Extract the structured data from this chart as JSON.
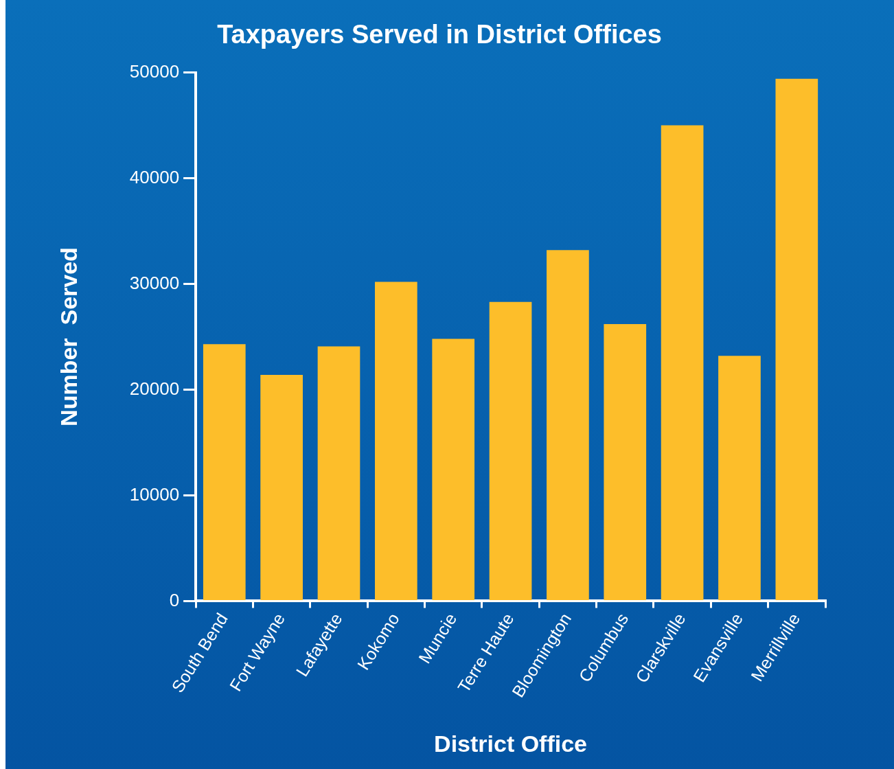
{
  "chart_data": {
    "type": "bar",
    "title": "Taxpayers Served in District Offices",
    "xlabel": "District Office",
    "ylabel": "Number  Served",
    "categories": [
      "South Bend",
      "Fort Wayne",
      "Lafayette",
      "Kokomo",
      "Muncie",
      "Terre Haute",
      "Bloomington",
      "Columbus",
      "Clarskville",
      "Evansville",
      "Merrillville"
    ],
    "values": [
      24300,
      21400,
      24100,
      30200,
      24800,
      28300,
      33200,
      26200,
      45000,
      23200,
      49400
    ],
    "color": "#fdbe2a",
    "ylim": [
      0,
      50000
    ],
    "yticks": [
      0,
      10000,
      20000,
      30000,
      40000,
      50000
    ],
    "grid": false,
    "legend": false
  }
}
